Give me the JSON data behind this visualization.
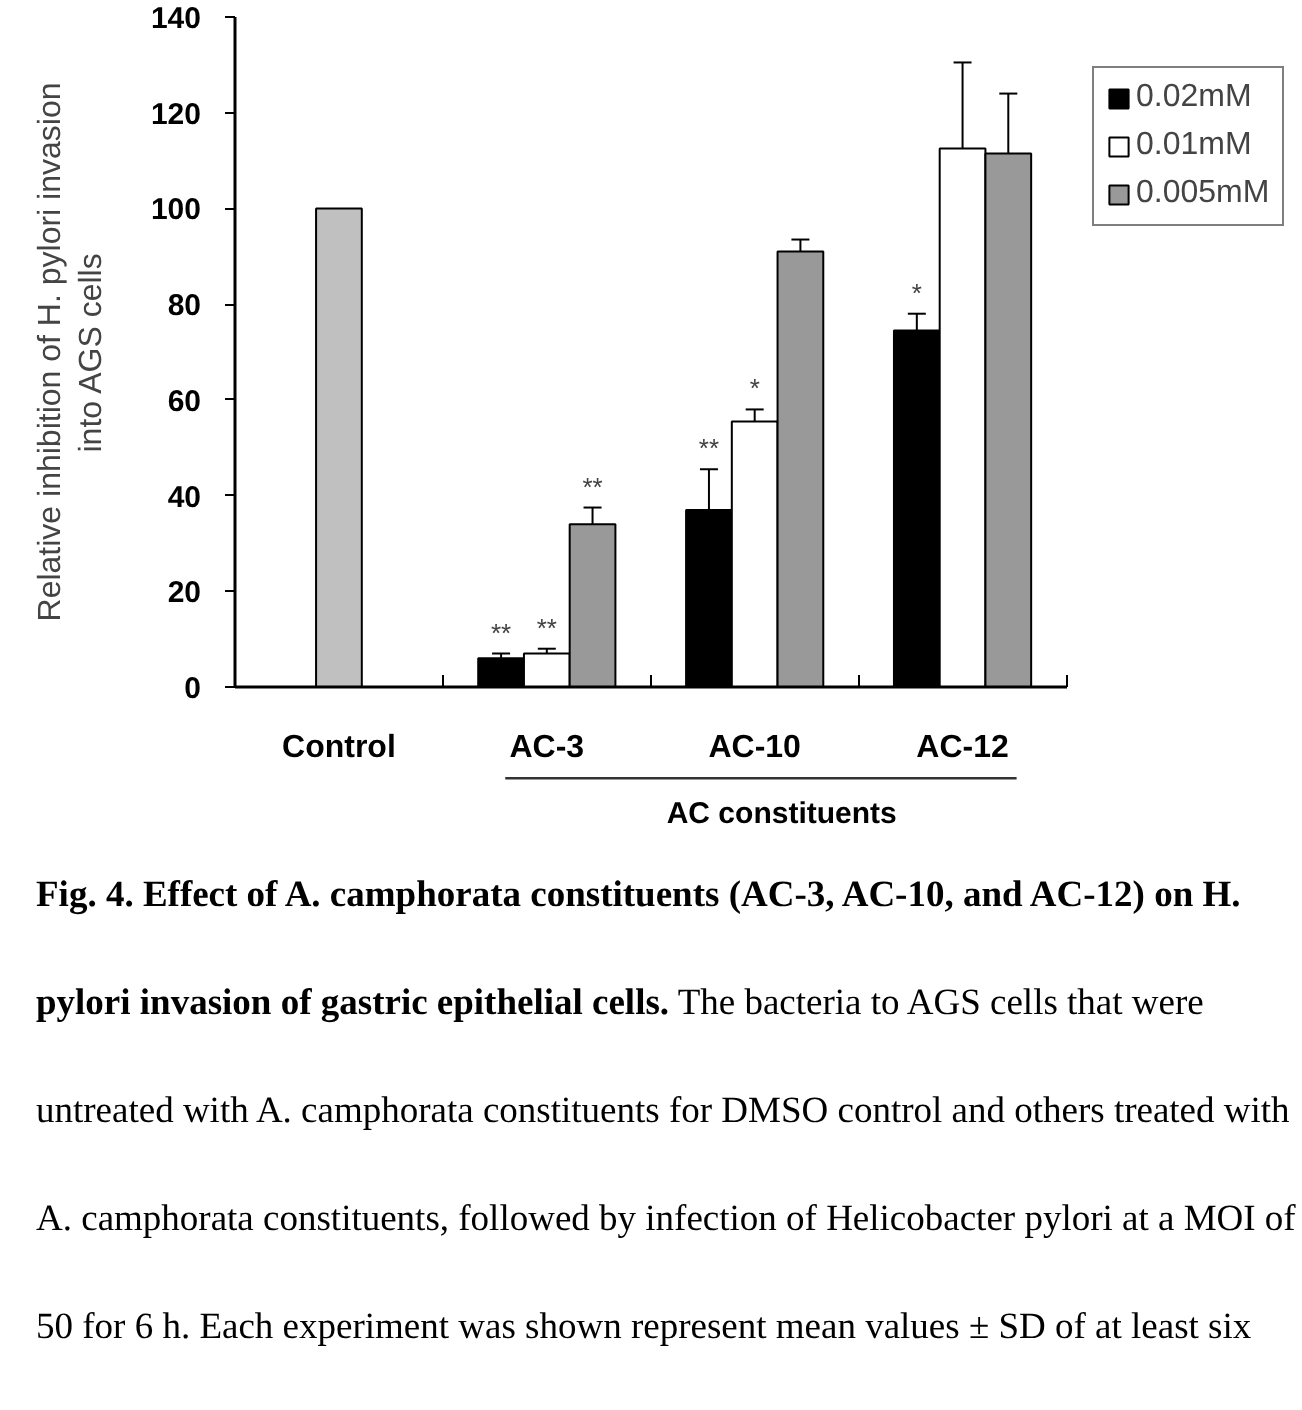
{
  "chart_data": {
    "type": "bar",
    "categories": [
      "Control",
      "AC-3",
      "AC-10",
      "AC-12"
    ],
    "xlabel": "AC constituents",
    "ylabel": "Relative inhibition of H. pylori invasion\ninto AGS cells",
    "ylim": [
      0,
      140
    ],
    "yticks": [
      0,
      20,
      40,
      60,
      80,
      100,
      120,
      140
    ],
    "legend": "top right",
    "series": [
      {
        "color": "#c0c0c0",
        "values": [
          100,
          null,
          null,
          null
        ]
      },
      {
        "name": "0.02mM",
        "color": "#000000",
        "values": [
          null,
          6,
          37,
          74.5
        ],
        "errors": [
          null,
          [
            6,
            7
          ],
          [
            37,
            45.5
          ],
          [
            74.5,
            78
          ]
        ],
        "value_labels": [
          null,
          "**",
          "**",
          "*"
        ]
      },
      {
        "name": "0.01mM",
        "color": "#ffffff",
        "values": [
          null,
          7,
          55.5,
          112.5
        ],
        "errors": [
          null,
          [
            7,
            8
          ],
          [
            55.5,
            58
          ],
          [
            112.5,
            130.5
          ]
        ],
        "value_labels": [
          null,
          "**",
          "*",
          null
        ]
      },
      {
        "name": "0.005mM",
        "color": "#999999",
        "values": [
          null,
          34,
          91,
          111.5
        ],
        "errors": [
          null,
          [
            34,
            37.5
          ],
          [
            91,
            93.5
          ],
          [
            111.5,
            124
          ]
        ],
        "value_labels": [
          null,
          "**",
          null,
          null
        ]
      }
    ],
    "annotations": [
      "Fig. 4. Effect of A. camphorata constituents (AC-3, AC-10, and AC-12) on H. pylori invasion of gastric epithelial cells.",
      "The bacteria to AGS cells that were untreated with A. camphorata constituents for DMSO control and others treated with A. camphorata constituents, followed by infection of Helicobacter pylori at a MOI of 50 for 6 h. Each experiment was shown represent mean values ± SD of at least six"
    ]
  }
}
